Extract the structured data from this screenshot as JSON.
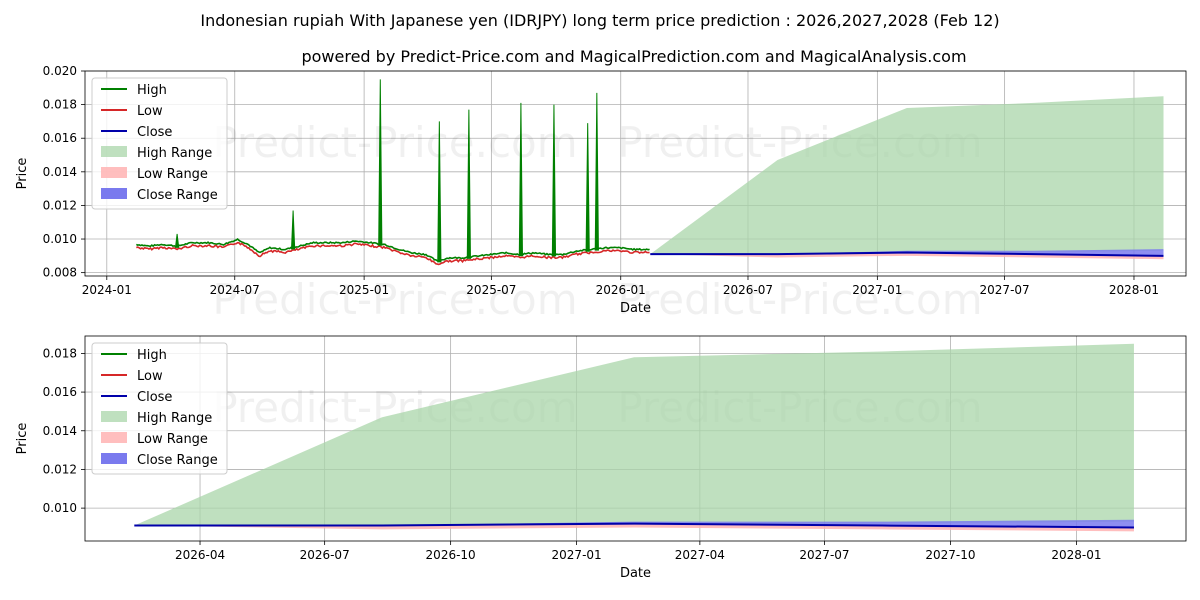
{
  "title": "Indonesian rupiah With Japanese yen (IDRJPY) long term price prediction : 2026,2027,2028 (Feb 12)",
  "subtitle": "powered by Predict-Price.com and MagicalPrediction.com and MagicalAnalysis.com",
  "watermark": "Predict-Price.com",
  "colors": {
    "high": "#008000",
    "low": "#d62728",
    "close": "#0000aa",
    "high_range": "#a9d5a9",
    "low_range": "#ffb3b3",
    "close_range": "#7a7aee"
  },
  "legend": [
    "High",
    "Low",
    "Close",
    "High Range",
    "Low Range",
    "Close Range"
  ],
  "chart_data": [
    {
      "type": "line",
      "xlabel": "Date",
      "ylabel": "Price",
      "xlim": [
        "2023-12-01",
        "2028-03-15"
      ],
      "ylim": [
        0.0078,
        0.02
      ],
      "xticks": [
        "2024-01",
        "2024-07",
        "2025-01",
        "2025-07",
        "2026-01",
        "2026-07",
        "2027-01",
        "2027-07",
        "2028-01"
      ],
      "xtick_dates": [
        "2024-01-01",
        "2024-07-01",
        "2025-01-01",
        "2025-07-01",
        "2026-01-01",
        "2026-07-01",
        "2027-01-01",
        "2027-07-01",
        "2028-01-01"
      ],
      "yticks": [
        0.008,
        0.01,
        0.012,
        0.014,
        0.016,
        0.018,
        0.02
      ],
      "ytick_labels": [
        "0.008",
        "0.010",
        "0.012",
        "0.014",
        "0.016",
        "0.018",
        "0.020"
      ],
      "legend_position": "upper-left",
      "history": {
        "dates": [
          "2024-02-12",
          "2024-03-01",
          "2024-03-20",
          "2024-04-10",
          "2024-05-01",
          "2024-05-25",
          "2024-06-15",
          "2024-07-05",
          "2024-07-20",
          "2024-08-05",
          "2024-08-20",
          "2024-09-10",
          "2024-10-01",
          "2024-10-20",
          "2024-11-10",
          "2024-12-01",
          "2024-12-20",
          "2025-01-10",
          "2025-01-30",
          "2025-02-20",
          "2025-03-10",
          "2025-03-30",
          "2025-04-15",
          "2025-05-01",
          "2025-05-20",
          "2025-06-10",
          "2025-07-01",
          "2025-07-20",
          "2025-08-10",
          "2025-08-30",
          "2025-09-20",
          "2025-10-10",
          "2025-10-30",
          "2025-11-20",
          "2025-12-10",
          "2025-12-30",
          "2026-01-20",
          "2026-02-12"
        ],
        "close": [
          0.0096,
          0.0095,
          0.0096,
          0.0095,
          0.0097,
          0.0097,
          0.0096,
          0.0099,
          0.0096,
          0.0091,
          0.0094,
          0.0093,
          0.0095,
          0.0097,
          0.0097,
          0.0097,
          0.0098,
          0.0097,
          0.0096,
          0.0093,
          0.0091,
          0.009,
          0.0086,
          0.0088,
          0.0088,
          0.0089,
          0.009,
          0.0091,
          0.009,
          0.0091,
          0.009,
          0.009,
          0.0092,
          0.0093,
          0.0094,
          0.0094,
          0.0093,
          0.0093
        ],
        "high_spikes": [
          {
            "date": "2024-04-10",
            "value": 0.0103
          },
          {
            "date": "2024-09-22",
            "value": 0.0117
          },
          {
            "date": "2025-01-24",
            "value": 0.0195
          },
          {
            "date": "2025-04-18",
            "value": 0.017
          },
          {
            "date": "2025-05-30",
            "value": 0.0177
          },
          {
            "date": "2025-08-12",
            "value": 0.0181
          },
          {
            "date": "2025-09-28",
            "value": 0.018
          },
          {
            "date": "2025-11-15",
            "value": 0.0169
          },
          {
            "date": "2025-11-28",
            "value": 0.0187
          }
        ]
      },
      "prediction": {
        "dates": [
          "2026-02-12",
          "2026-08-12",
          "2027-02-12",
          "2027-08-12",
          "2028-02-12"
        ],
        "close": [
          0.0091,
          0.0091,
          0.0092,
          0.0091,
          0.009
        ],
        "high_range": {
          "upper": [
            0.0091,
            0.0147,
            0.0178,
            0.0181,
            0.0185
          ],
          "lower": [
            0.0091,
            0.0091,
            0.0092,
            0.0092,
            0.0093
          ]
        },
        "low_range": {
          "upper": [
            0.0091,
            0.0091,
            0.0092,
            0.0091,
            0.009
          ],
          "lower": [
            0.0091,
            0.0089,
            0.009,
            0.0089,
            0.0088
          ]
        },
        "close_range": {
          "upper": [
            0.0091,
            0.0091,
            0.0093,
            0.0093,
            0.0094
          ],
          "lower": [
            0.0091,
            0.0091,
            0.0092,
            0.0091,
            0.009
          ]
        }
      }
    },
    {
      "type": "line",
      "xlabel": "Date",
      "ylabel": "Price",
      "xlim": [
        "2026-01-07",
        "2028-03-21"
      ],
      "ylim": [
        0.0083,
        0.0189
      ],
      "xticks": [
        "2026-04",
        "2026-07",
        "2026-10",
        "2027-01",
        "2027-04",
        "2027-07",
        "2027-10",
        "2028-01"
      ],
      "xtick_dates": [
        "2026-04-01",
        "2026-07-01",
        "2026-10-01",
        "2027-01-01",
        "2027-04-01",
        "2027-07-01",
        "2027-10-01",
        "2028-01-01"
      ],
      "yticks": [
        0.01,
        0.012,
        0.014,
        0.016,
        0.018
      ],
      "ytick_labels": [
        "0.010",
        "0.012",
        "0.014",
        "0.016",
        "0.018"
      ],
      "legend_position": "upper-left",
      "prediction": {
        "dates": [
          "2026-02-12",
          "2026-08-12",
          "2027-02-12",
          "2027-08-12",
          "2028-02-12"
        ],
        "close": [
          0.0091,
          0.0091,
          0.0092,
          0.0091,
          0.009
        ],
        "high_range": {
          "upper": [
            0.0091,
            0.0147,
            0.0178,
            0.0181,
            0.0185
          ],
          "lower": [
            0.0091,
            0.0091,
            0.0092,
            0.0092,
            0.0093
          ]
        },
        "low_range": {
          "upper": [
            0.0091,
            0.0091,
            0.0092,
            0.0091,
            0.009
          ],
          "lower": [
            0.0091,
            0.0089,
            0.009,
            0.0089,
            0.0088
          ]
        },
        "close_range": {
          "upper": [
            0.0091,
            0.0091,
            0.0093,
            0.0093,
            0.0094
          ],
          "lower": [
            0.0091,
            0.0091,
            0.0092,
            0.0091,
            0.009
          ]
        }
      }
    }
  ]
}
